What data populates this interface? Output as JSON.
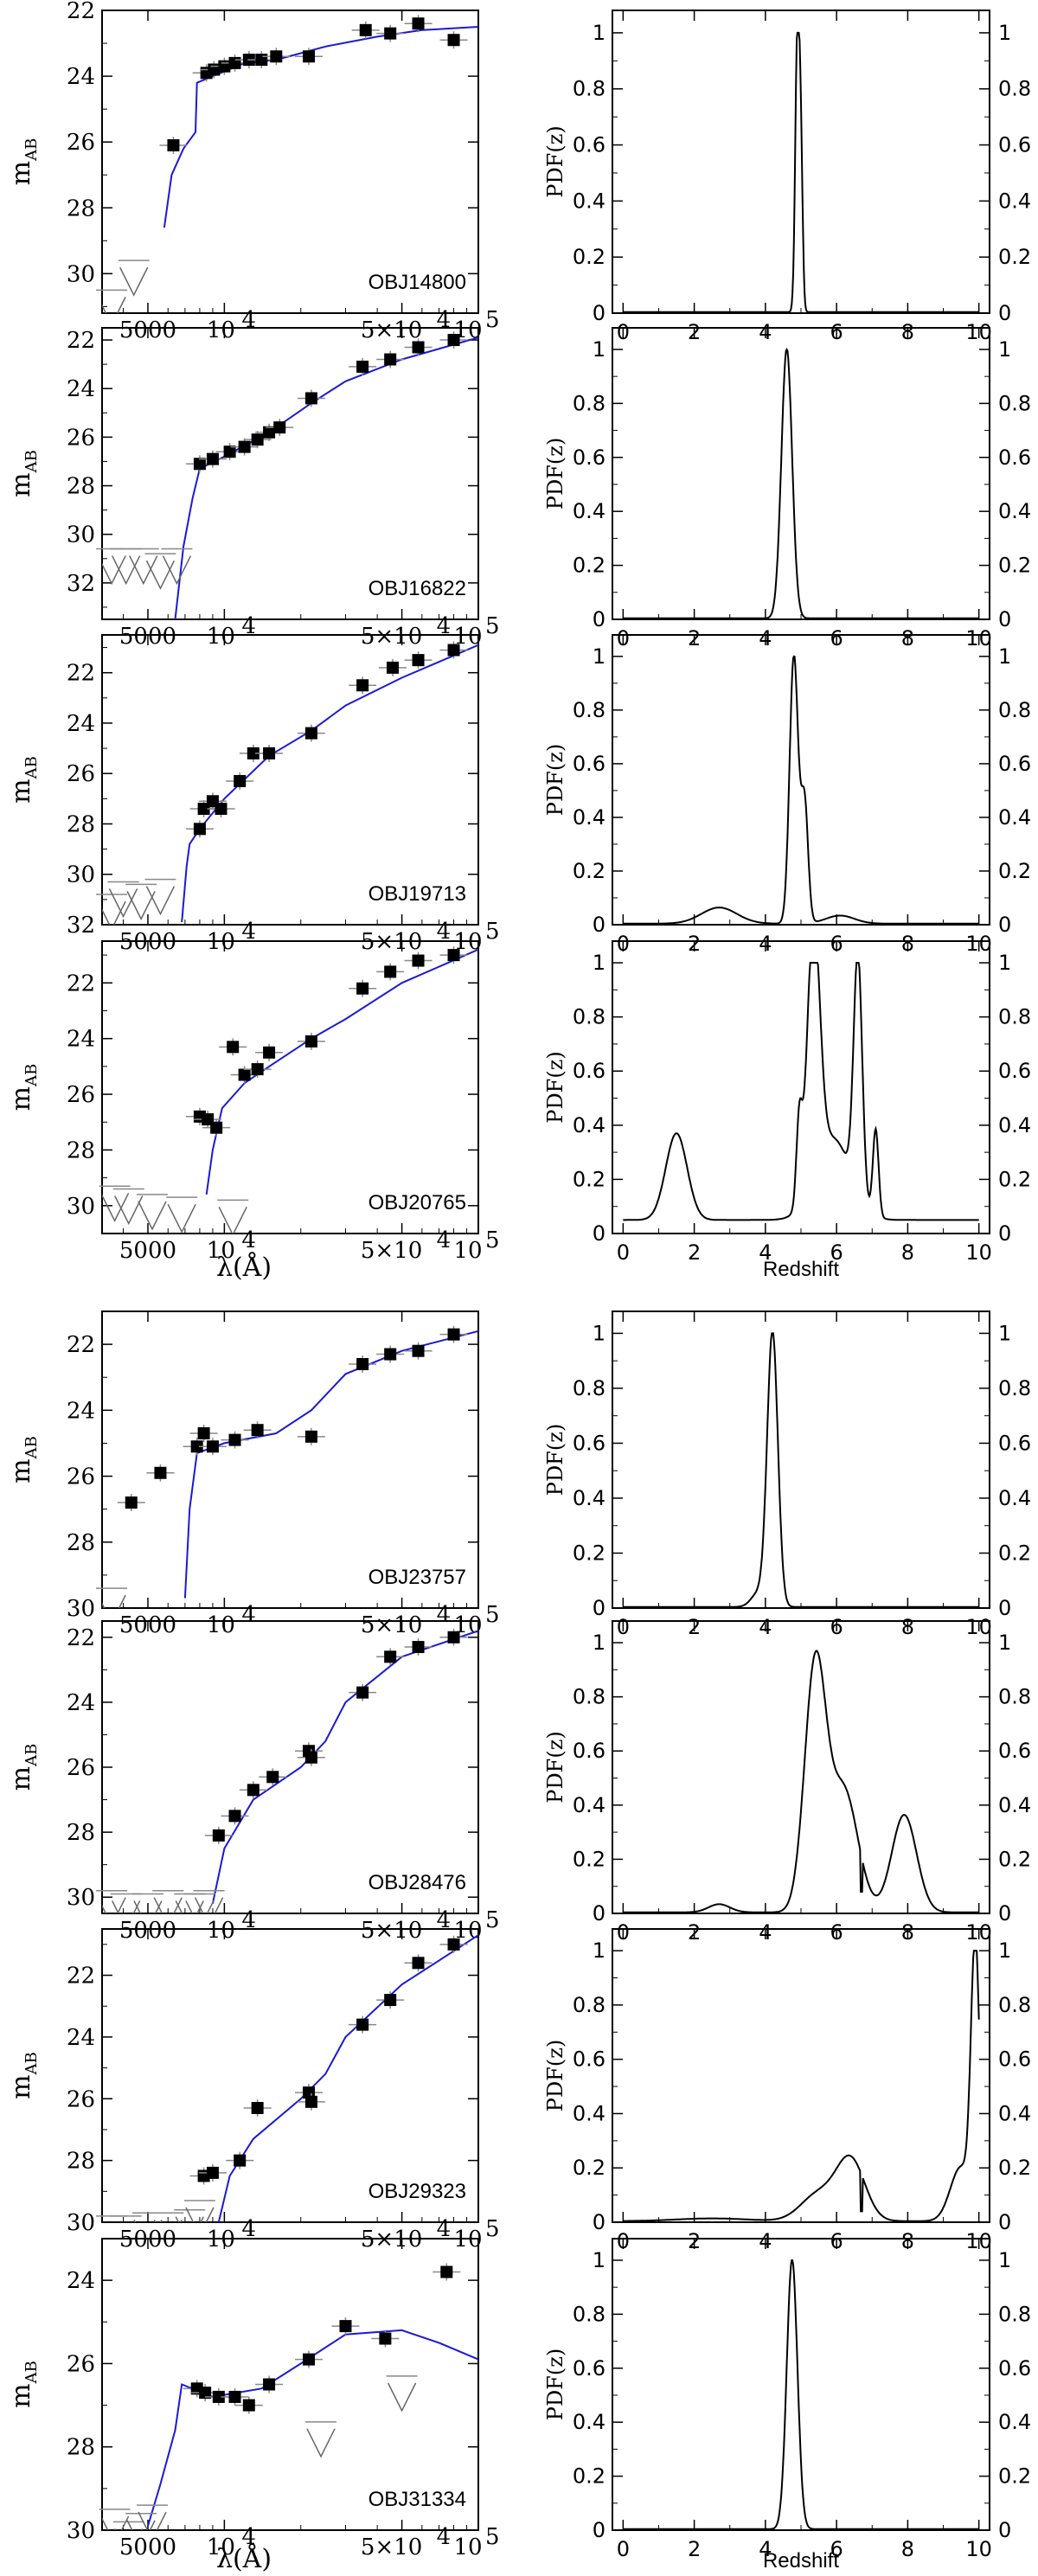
{
  "figure": {
    "sed_ylabel_main": "m",
    "sed_ylabel_sub": "AB",
    "sed_xlabel": "λ(Å)",
    "pdf_ylabel": "PDF(z)",
    "pdf_xlabel": "Redshift",
    "sed_xtick_labels": [
      "5000",
      "10",
      "4",
      "5×10",
      "4",
      "10",
      "5"
    ]
  },
  "chart_data": [
    {
      "type": "line",
      "panel": "sed",
      "object": "OBJ14800",
      "ylim": [
        31.2,
        22
      ],
      "yticks": [
        22,
        24,
        26,
        28,
        30
      ],
      "points": [
        [
          8500,
          23.9
        ],
        [
          9100,
          23.8
        ],
        [
          10000,
          23.7
        ],
        [
          11000,
          23.6
        ],
        [
          12500,
          23.5
        ],
        [
          14000,
          23.5
        ],
        [
          16000,
          23.4
        ],
        [
          21500,
          23.4
        ],
        [
          36000,
          22.6
        ],
        [
          45000,
          22.7
        ],
        [
          58000,
          22.4
        ],
        [
          80000,
          22.9
        ],
        [
          6300,
          26.1
        ]
      ],
      "upper_limits": [
        [
          4400,
          29.6
        ],
        [
          3600,
          30.5
        ]
      ],
      "model": [
        [
          5800,
          28.6
        ],
        [
          6200,
          27.0
        ],
        [
          6900,
          26.2
        ],
        [
          7700,
          25.7
        ],
        [
          7800,
          24.2
        ],
        [
          9000,
          24.0
        ],
        [
          12000,
          23.6
        ],
        [
          16000,
          23.5
        ],
        [
          20000,
          23.3
        ],
        [
          25000,
          23.1
        ],
        [
          40000,
          22.8
        ],
        [
          60000,
          22.6
        ],
        [
          100000,
          22.5
        ]
      ]
    },
    {
      "type": "line",
      "panel": "sed",
      "object": "OBJ16822",
      "ylim": [
        33.5,
        21.5
      ],
      "yticks": [
        22,
        24,
        26,
        28,
        30,
        32
      ],
      "points": [
        [
          8000,
          27.1
        ],
        [
          9000,
          26.9
        ],
        [
          10500,
          26.6
        ],
        [
          12000,
          26.4
        ],
        [
          13500,
          26.1
        ],
        [
          15000,
          25.8
        ],
        [
          16500,
          25.6
        ],
        [
          22000,
          24.4
        ],
        [
          35000,
          23.1
        ],
        [
          45000,
          22.8
        ],
        [
          58000,
          22.3
        ],
        [
          80000,
          22.0
        ]
      ],
      "upper_limits": [
        [
          3600,
          30.6
        ],
        [
          4100,
          30.6
        ],
        [
          4800,
          30.6
        ],
        [
          5600,
          30.8
        ],
        [
          6500,
          30.6
        ]
      ],
      "model": [
        [
          6400,
          33.5
        ],
        [
          6900,
          30.5
        ],
        [
          7500,
          28.5
        ],
        [
          8000,
          27.3
        ],
        [
          10000,
          26.8
        ],
        [
          15000,
          25.8
        ],
        [
          22000,
          24.6
        ],
        [
          30000,
          23.7
        ],
        [
          50000,
          22.8
        ],
        [
          100000,
          21.9
        ]
      ]
    },
    {
      "type": "line",
      "panel": "sed",
      "object": "OBJ19713",
      "ylim": [
        32,
        20.5
      ],
      "yticks": [
        22,
        24,
        26,
        28,
        30,
        32
      ],
      "points": [
        [
          8000,
          28.2
        ],
        [
          8300,
          27.4
        ],
        [
          9000,
          27.1
        ],
        [
          9700,
          27.4
        ],
        [
          11500,
          26.3
        ],
        [
          13000,
          25.2
        ],
        [
          15000,
          25.2
        ],
        [
          22000,
          24.4
        ],
        [
          35000,
          22.5
        ],
        [
          46000,
          21.8
        ],
        [
          58000,
          21.5
        ],
        [
          80000,
          21.1
        ]
      ],
      "upper_limits": [
        [
          3600,
          30.8
        ],
        [
          4000,
          30.3
        ],
        [
          4700,
          30.4
        ],
        [
          5600,
          30.2
        ]
      ],
      "model": [
        [
          6800,
          31.9
        ],
        [
          7100,
          29.7
        ],
        [
          7300,
          28.8
        ],
        [
          8000,
          28.2
        ],
        [
          10000,
          27.0
        ],
        [
          15000,
          25.3
        ],
        [
          22000,
          24.3
        ],
        [
          30000,
          23.3
        ],
        [
          50000,
          22.2
        ],
        [
          100000,
          20.9
        ]
      ]
    },
    {
      "type": "line",
      "panel": "sed",
      "object": "OBJ20765",
      "ylim": [
        31,
        20.5
      ],
      "yticks": [
        22,
        24,
        26,
        28,
        30
      ],
      "points": [
        [
          8000,
          26.8
        ],
        [
          8600,
          26.9
        ],
        [
          9300,
          27.2
        ],
        [
          10800,
          24.3
        ],
        [
          12000,
          25.3
        ],
        [
          13500,
          25.1
        ],
        [
          15000,
          24.5
        ],
        [
          22000,
          24.1
        ],
        [
          35000,
          22.2
        ],
        [
          45000,
          21.6
        ],
        [
          58000,
          21.2
        ],
        [
          80000,
          21.0
        ]
      ],
      "upper_limits": [
        [
          3700,
          29.3
        ],
        [
          4200,
          29.4
        ],
        [
          5200,
          29.6
        ],
        [
          6800,
          29.7
        ],
        [
          10800,
          29.8
        ]
      ],
      "model": [
        [
          8500,
          29.6
        ],
        [
          9000,
          28.0
        ],
        [
          9800,
          26.5
        ],
        [
          12000,
          25.6
        ],
        [
          15000,
          25.0
        ],
        [
          22000,
          24.0
        ],
        [
          30000,
          23.3
        ],
        [
          50000,
          22.0
        ],
        [
          100000,
          20.8
        ]
      ]
    },
    {
      "type": "line",
      "panel": "sed",
      "object": "OBJ23757",
      "ylim": [
        30,
        21
      ],
      "yticks": [
        22,
        24,
        26,
        28,
        30
      ],
      "points": [
        [
          4300,
          26.8
        ],
        [
          5600,
          25.9
        ],
        [
          7800,
          25.1
        ],
        [
          8300,
          24.7
        ],
        [
          9000,
          25.1
        ],
        [
          11000,
          24.9
        ],
        [
          13500,
          24.6
        ],
        [
          22000,
          24.8
        ],
        [
          35000,
          22.6
        ],
        [
          45000,
          22.3
        ],
        [
          58000,
          22.2
        ],
        [
          80000,
          21.7
        ]
      ],
      "upper_limits": [
        [
          3600,
          29.4
        ]
      ],
      "model": [
        [
          7000,
          29.7
        ],
        [
          7300,
          27.0
        ],
        [
          7800,
          25.3
        ],
        [
          10000,
          25.0
        ],
        [
          16000,
          24.7
        ],
        [
          22000,
          24.0
        ],
        [
          30000,
          22.9
        ],
        [
          50000,
          22.2
        ],
        [
          100000,
          21.6
        ]
      ]
    },
    {
      "type": "line",
      "panel": "sed",
      "object": "OBJ28476",
      "ylim": [
        30.5,
        21.5
      ],
      "yticks": [
        22,
        24,
        26,
        28,
        30
      ],
      "points": [
        [
          9500,
          28.1
        ],
        [
          11000,
          27.5
        ],
        [
          13000,
          26.7
        ],
        [
          15500,
          26.3
        ],
        [
          21500,
          25.5
        ],
        [
          22000,
          25.7
        ],
        [
          35000,
          23.7
        ],
        [
          45000,
          22.6
        ],
        [
          58000,
          22.3
        ],
        [
          80000,
          22.0
        ]
      ],
      "upper_limits": [
        [
          3600,
          29.8
        ],
        [
          4100,
          29.9
        ],
        [
          5000,
          29.9
        ],
        [
          6000,
          29.8
        ],
        [
          7300,
          29.9
        ],
        [
          8000,
          29.9
        ],
        [
          8700,
          29.8
        ]
      ],
      "model": [
        [
          9000,
          30.2
        ],
        [
          10000,
          28.5
        ],
        [
          13000,
          27.0
        ],
        [
          20000,
          26.0
        ],
        [
          25000,
          25.2
        ],
        [
          30000,
          24.0
        ],
        [
          50000,
          22.6
        ],
        [
          100000,
          21.8
        ]
      ]
    },
    {
      "type": "line",
      "panel": "sed",
      "object": "OBJ29323",
      "ylim": [
        30,
        20.5
      ],
      "yticks": [
        22,
        24,
        26,
        28,
        30
      ],
      "points": [
        [
          8300,
          28.5
        ],
        [
          9000,
          28.4
        ],
        [
          11500,
          28.0
        ],
        [
          13500,
          26.3
        ],
        [
          21500,
          25.8
        ],
        [
          22000,
          26.1
        ],
        [
          35000,
          23.6
        ],
        [
          45000,
          22.8
        ],
        [
          58000,
          21.6
        ],
        [
          80000,
          21.0
        ]
      ],
      "upper_limits": [
        [
          3600,
          29.8
        ],
        [
          4100,
          29.8
        ],
        [
          5000,
          29.7
        ],
        [
          6000,
          29.7
        ],
        [
          7300,
          29.6
        ],
        [
          8000,
          29.3
        ]
      ],
      "model": [
        [
          9500,
          30.0
        ],
        [
          10500,
          28.5
        ],
        [
          13000,
          27.3
        ],
        [
          20000,
          26.0
        ],
        [
          25000,
          25.2
        ],
        [
          30000,
          24.0
        ],
        [
          50000,
          22.3
        ],
        [
          100000,
          20.7
        ]
      ]
    },
    {
      "type": "line",
      "panel": "sed",
      "object": "OBJ31334",
      "ylim": [
        30,
        23
      ],
      "yticks": [
        24,
        26,
        28,
        30
      ],
      "points": [
        [
          7800,
          26.6
        ],
        [
          8400,
          26.7
        ],
        [
          9500,
          26.8
        ],
        [
          11000,
          26.8
        ],
        [
          12500,
          27.0
        ],
        [
          15000,
          26.5
        ],
        [
          21500,
          25.9
        ],
        [
          30000,
          25.1
        ],
        [
          43000,
          25.4
        ],
        [
          75000,
          23.8
        ]
      ],
      "upper_limits": [
        [
          3700,
          29.5
        ],
        [
          4200,
          29.8
        ],
        [
          4700,
          29.6
        ],
        [
          5200,
          29.4
        ],
        [
          24000,
          27.4
        ],
        [
          50000,
          26.3
        ]
      ],
      "model": [
        [
          5000,
          29.9
        ],
        [
          5600,
          28.9
        ],
        [
          6400,
          27.6
        ],
        [
          6800,
          26.5
        ],
        [
          9000,
          26.8
        ],
        [
          14000,
          26.6
        ],
        [
          20000,
          26.0
        ],
        [
          30000,
          25.3
        ],
        [
          50000,
          25.2
        ],
        [
          70000,
          25.5
        ],
        [
          100000,
          25.9
        ]
      ]
    },
    {
      "type": "line",
      "panel": "pdf",
      "object": "OBJ14800",
      "xlim": [
        -0.3,
        10.3
      ],
      "ylim": [
        0,
        1.08
      ],
      "peaks": [
        {
          "center": 4.9,
          "height": 1.0,
          "width": 0.06
        },
        {
          "center": 5.0,
          "height": 0.5,
          "width": 0.05
        }
      ]
    },
    {
      "type": "line",
      "panel": "pdf",
      "object": "OBJ16822",
      "xlim": [
        -0.3,
        10.3
      ],
      "ylim": [
        0,
        1.08
      ],
      "peaks": [
        {
          "center": 4.6,
          "height": 1.0,
          "width": 0.15
        }
      ]
    },
    {
      "type": "line",
      "panel": "pdf",
      "object": "OBJ19713",
      "xlim": [
        -0.3,
        10.3
      ],
      "ylim": [
        0,
        1.08
      ],
      "peaks": [
        {
          "center": 4.8,
          "height": 1.0,
          "width": 0.12
        },
        {
          "center": 5.1,
          "height": 0.45,
          "width": 0.1
        },
        {
          "center": 2.7,
          "height": 0.06,
          "width": 0.5
        },
        {
          "center": 6.1,
          "height": 0.03,
          "width": 0.4
        }
      ]
    },
    {
      "type": "line",
      "panel": "pdf",
      "object": "OBJ20765",
      "xlim": [
        -0.3,
        10.3
      ],
      "ylim": [
        0,
        1.08
      ],
      "baseline": 0.05,
      "peaks": [
        {
          "center": 5.35,
          "height": 0.95,
          "width": 0.18
        },
        {
          "center": 6.6,
          "height": 0.88,
          "width": 0.12
        },
        {
          "center": 4.95,
          "height": 0.3,
          "width": 0.08
        },
        {
          "center": 7.1,
          "height": 0.32,
          "width": 0.08
        },
        {
          "center": 1.5,
          "height": 0.32,
          "width": 0.3
        },
        {
          "center": 5.9,
          "height": 0.3,
          "width": 0.5
        }
      ]
    },
    {
      "type": "line",
      "panel": "pdf",
      "object": "OBJ23757",
      "xlim": [
        -0.3,
        10.3
      ],
      "ylim": [
        0,
        1.08
      ],
      "peaks": [
        {
          "center": 4.2,
          "height": 1.0,
          "width": 0.15
        },
        {
          "center": 3.8,
          "height": 0.05,
          "width": 0.2
        }
      ]
    },
    {
      "type": "line",
      "panel": "pdf",
      "object": "OBJ28476",
      "xlim": [
        -0.3,
        10.3
      ],
      "ylim": [
        0,
        1.08
      ],
      "peaks": [
        {
          "center": 5.4,
          "height": 0.9,
          "width": 0.3
        },
        {
          "center": 6.2,
          "height": 0.45,
          "width": 0.4
        },
        {
          "center": 7.9,
          "height": 0.36,
          "width": 0.35
        },
        {
          "center": 2.7,
          "height": 0.03,
          "width": 0.3
        }
      ],
      "cut": [
        6.7,
        0.08
      ]
    },
    {
      "type": "line",
      "panel": "pdf",
      "object": "OBJ29323",
      "xlim": [
        -0.3,
        10.3
      ],
      "ylim": [
        0,
        1.08
      ],
      "peaks": [
        {
          "center": 9.9,
          "height": 0.98,
          "width": 0.12
        },
        {
          "center": 9.5,
          "height": 0.2,
          "width": 0.3
        },
        {
          "center": 6.4,
          "height": 0.22,
          "width": 0.4
        },
        {
          "center": 5.5,
          "height": 0.1,
          "width": 0.5
        },
        {
          "center": 2.5,
          "height": 0.01,
          "width": 1.0
        }
      ],
      "cut": [
        6.7,
        0.04
      ]
    },
    {
      "type": "line",
      "panel": "pdf",
      "object": "OBJ31334",
      "xlim": [
        -0.3,
        10.3
      ],
      "ylim": [
        0,
        1.08
      ],
      "peaks": [
        {
          "center": 4.75,
          "height": 1.0,
          "width": 0.15
        }
      ]
    }
  ]
}
